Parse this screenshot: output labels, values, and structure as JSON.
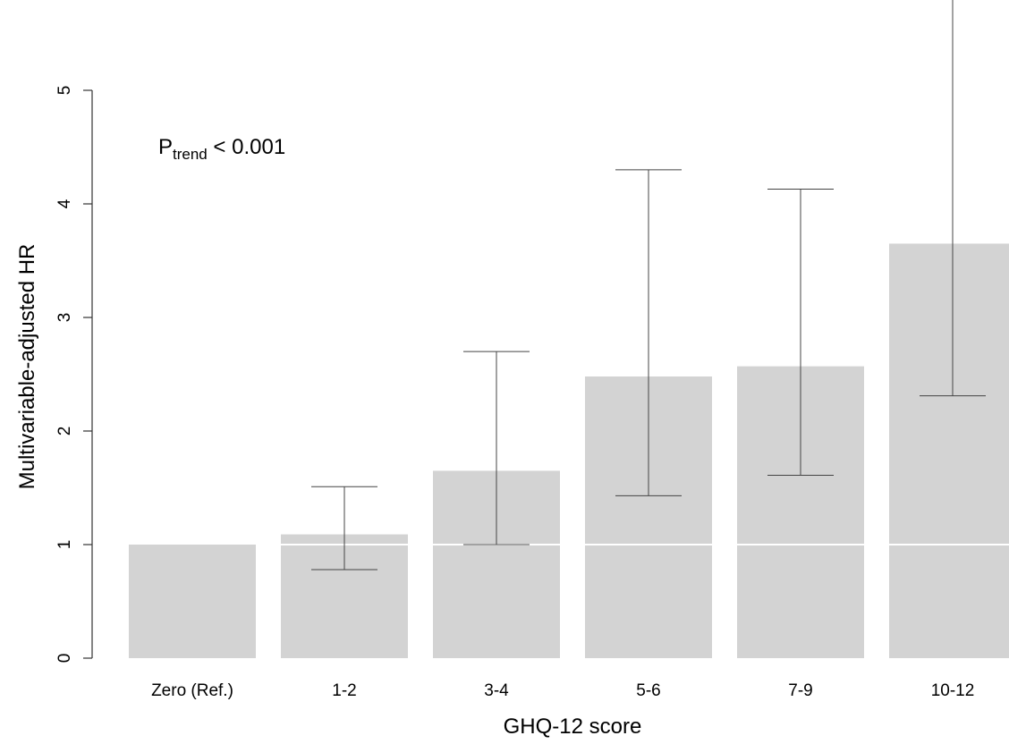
{
  "chart_data": {
    "type": "bar",
    "categories": [
      "Zero (Ref.)",
      "1-2",
      "3-4",
      "5-6",
      "7-9",
      "10-12"
    ],
    "values": [
      1.0,
      1.09,
      1.65,
      2.48,
      2.57,
      3.65
    ],
    "ci_lower": [
      null,
      0.78,
      1.0,
      1.43,
      1.61,
      2.31
    ],
    "ci_upper": [
      null,
      1.51,
      2.7,
      4.3,
      4.13,
      5.8
    ],
    "xlabel": "GHQ-12 score",
    "ylabel": "Multivariable-adjusted HR",
    "ylim": [
      0,
      5.8
    ],
    "yticks": [
      0,
      1,
      2,
      3,
      4,
      5
    ],
    "reference_line": 1,
    "annotation": {
      "main": "P",
      "subscript": "trend",
      "rest": " < 0.001"
    },
    "colors": {
      "bar": "#d3d3d3",
      "reference_line": "#ffffff",
      "error_bar": "#444444"
    },
    "grid": false,
    "legend": "none"
  }
}
